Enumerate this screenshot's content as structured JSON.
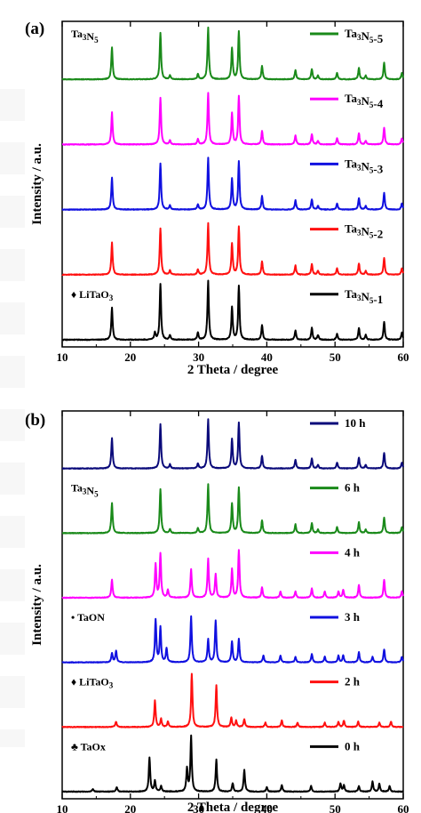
{
  "chart_data": [
    {
      "panel_label": "(a)",
      "type": "line",
      "xlabel": "2 Theta / degree",
      "ylabel": "Intensity / a.u.",
      "xlim": [
        10,
        60
      ],
      "xticks": [
        10,
        20,
        30,
        40,
        50,
        60
      ],
      "series": [
        {
          "name": "Ta3N5-5",
          "color": "#1a8a1a",
          "profile": "ta3n5"
        },
        {
          "name": "Ta3N5-4",
          "color": "#ff00ff",
          "profile": "ta3n5"
        },
        {
          "name": "Ta3N5-3",
          "color": "#1010e0",
          "profile": "ta3n5"
        },
        {
          "name": "Ta3N5-2",
          "color": "#ff1010",
          "profile": "ta3n5"
        },
        {
          "name": "Ta3N5-1",
          "color": "#000000",
          "profile": "ta3n5_litao3"
        }
      ],
      "annotations": [
        {
          "text": "Ta3N5",
          "series": "Ta3N5-5"
        },
        {
          "text": "♦ LiTaO3",
          "series": "Ta3N5-1"
        }
      ]
    },
    {
      "panel_label": "(b)",
      "type": "line",
      "xlabel": "2 Theta / degree",
      "ylabel": "Intensity / a.u.",
      "xlim": [
        10,
        60
      ],
      "xticks": [
        10,
        20,
        30,
        40,
        50,
        60
      ],
      "series": [
        {
          "name": "10 h",
          "color": "#0a0a7a",
          "profile": "ta3n5"
        },
        {
          "name": "6 h",
          "color": "#1a8a1a",
          "profile": "ta3n5"
        },
        {
          "name": "4 h",
          "color": "#ff00ff",
          "profile": "mix4h"
        },
        {
          "name": "3 h",
          "color": "#1010e0",
          "profile": "taon3h"
        },
        {
          "name": "2 h",
          "color": "#ff1010",
          "profile": "litao2h"
        },
        {
          "name": "0 h",
          "color": "#000000",
          "profile": "taox0h"
        }
      ],
      "annotations": [
        {
          "text": "Ta3N5",
          "series": "6 h"
        },
        {
          "text": "• TaON",
          "series": "3 h"
        },
        {
          "text": "♦ LiTaO3",
          "series": "2 h"
        },
        {
          "text": "♣ TaOx",
          "series": "0 h"
        }
      ]
    }
  ],
  "peaks": {
    "ta3n5": [
      [
        17.3,
        0.62
      ],
      [
        24.4,
        0.9
      ],
      [
        25.8,
        0.08
      ],
      [
        29.9,
        0.1
      ],
      [
        31.4,
        1.0
      ],
      [
        34.9,
        0.6
      ],
      [
        35.9,
        0.93
      ],
      [
        39.3,
        0.26
      ],
      [
        44.2,
        0.18
      ],
      [
        46.6,
        0.2
      ],
      [
        47.5,
        0.07
      ],
      [
        50.3,
        0.12
      ],
      [
        53.5,
        0.22
      ],
      [
        54.5,
        0.07
      ],
      [
        57.2,
        0.32
      ],
      [
        59.8,
        0.12
      ]
    ],
    "ta3n5_litao3": [
      [
        17.3,
        0.55
      ],
      [
        23.6,
        0.12
      ],
      [
        24.4,
        0.95
      ],
      [
        25.8,
        0.08
      ],
      [
        29.9,
        0.12
      ],
      [
        31.4,
        1.0
      ],
      [
        34.9,
        0.55
      ],
      [
        35.9,
        0.92
      ],
      [
        39.3,
        0.25
      ],
      [
        44.2,
        0.16
      ],
      [
        46.6,
        0.2
      ],
      [
        47.5,
        0.08
      ],
      [
        50.3,
        0.1
      ],
      [
        53.5,
        0.2
      ],
      [
        54.5,
        0.08
      ],
      [
        57.2,
        0.3
      ],
      [
        59.8,
        0.12
      ]
    ],
    "mix4h": [
      [
        17.3,
        0.35
      ],
      [
        23.7,
        0.65
      ],
      [
        24.4,
        0.85
      ],
      [
        25.5,
        0.15
      ],
      [
        28.9,
        0.55
      ],
      [
        31.4,
        0.75
      ],
      [
        32.5,
        0.45
      ],
      [
        34.9,
        0.55
      ],
      [
        35.9,
        0.92
      ],
      [
        39.3,
        0.2
      ],
      [
        42.0,
        0.12
      ],
      [
        44.2,
        0.12
      ],
      [
        46.6,
        0.18
      ],
      [
        48.5,
        0.12
      ],
      [
        50.5,
        0.12
      ],
      [
        51.2,
        0.15
      ],
      [
        53.5,
        0.25
      ],
      [
        57.2,
        0.35
      ],
      [
        59.8,
        0.12
      ]
    ],
    "taon3h": [
      [
        17.3,
        0.2
      ],
      [
        17.9,
        0.25
      ],
      [
        23.7,
        0.92
      ],
      [
        24.4,
        0.75
      ],
      [
        25.3,
        0.3
      ],
      [
        28.9,
        1.0
      ],
      [
        31.4,
        0.5
      ],
      [
        32.5,
        0.9
      ],
      [
        34.9,
        0.45
      ],
      [
        35.9,
        0.5
      ],
      [
        39.5,
        0.15
      ],
      [
        42.0,
        0.15
      ],
      [
        44.2,
        0.12
      ],
      [
        46.6,
        0.18
      ],
      [
        48.5,
        0.12
      ],
      [
        50.5,
        0.15
      ],
      [
        51.2,
        0.15
      ],
      [
        53.5,
        0.22
      ],
      [
        55.5,
        0.12
      ],
      [
        57.2,
        0.28
      ],
      [
        59.8,
        0.12
      ]
    ],
    "litao2h": [
      [
        17.9,
        0.1
      ],
      [
        23.6,
        0.5
      ],
      [
        24.5,
        0.15
      ],
      [
        25.5,
        0.1
      ],
      [
        29.0,
        1.0
      ],
      [
        32.6,
        0.78
      ],
      [
        34.8,
        0.18
      ],
      [
        35.5,
        0.12
      ],
      [
        36.7,
        0.15
      ],
      [
        39.8,
        0.08
      ],
      [
        42.2,
        0.12
      ],
      [
        44.5,
        0.08
      ],
      [
        48.5,
        0.08
      ],
      [
        50.5,
        0.1
      ],
      [
        51.3,
        0.12
      ],
      [
        53.4,
        0.1
      ],
      [
        56.5,
        0.08
      ],
      [
        58.2,
        0.1
      ]
    ],
    "taox0h": [
      [
        14.5,
        0.05
      ],
      [
        18.0,
        0.08
      ],
      [
        22.8,
        0.62
      ],
      [
        23.6,
        0.2
      ],
      [
        24.5,
        0.1
      ],
      [
        28.3,
        0.42
      ],
      [
        28.9,
        1.0
      ],
      [
        32.6,
        0.58
      ],
      [
        35.0,
        0.15
      ],
      [
        36.7,
        0.4
      ],
      [
        40.0,
        0.08
      ],
      [
        42.2,
        0.12
      ],
      [
        46.5,
        0.1
      ],
      [
        50.8,
        0.15
      ],
      [
        51.3,
        0.12
      ],
      [
        53.5,
        0.1
      ],
      [
        55.5,
        0.18
      ],
      [
        56.5,
        0.14
      ],
      [
        58.0,
        0.1
      ]
    ]
  }
}
